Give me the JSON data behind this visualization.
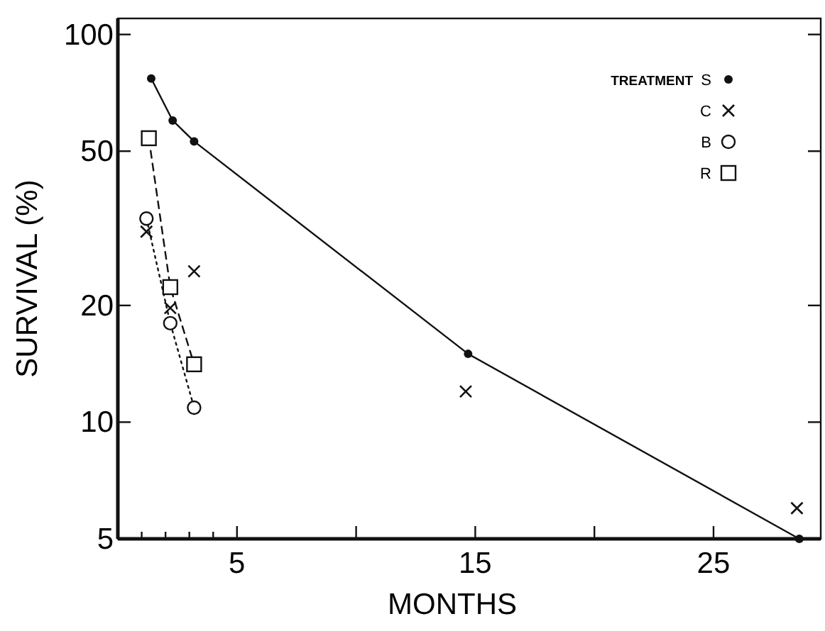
{
  "chart_data": {
    "type": "line",
    "xlabel": "MONTHS",
    "ylabel": "SURVIVAL (%)",
    "legend_title": "TREATMENT",
    "legend": "top right",
    "log": "y",
    "xlim": [
      0,
      29.5
    ],
    "ylim": [
      5,
      110
    ],
    "xticks": [
      {
        "value": 1,
        "label": null
      },
      {
        "value": 2,
        "label": null
      },
      {
        "value": 3,
        "label": null
      },
      {
        "value": 4,
        "label": null
      },
      5,
      {
        "value": 10,
        "label": null
      },
      15,
      {
        "value": 20,
        "label": null
      },
      25
    ],
    "yticks": [
      5,
      10,
      20,
      50,
      100
    ],
    "series": [
      {
        "name": "S",
        "color": "#111111",
        "marker": "circle",
        "line_style": "solid",
        "x": [
          1.4,
          2.3,
          3.2,
          14.7,
          28.6
        ],
        "values": [
          77,
          60,
          53,
          15,
          5
        ]
      },
      {
        "name": "C",
        "color": "#111111",
        "type": "scatter",
        "marker": "cross",
        "x": [
          1.2,
          2.2,
          3.2,
          14.6,
          28.5
        ],
        "values": [
          31,
          19.7,
          24.5,
          12,
          6
        ]
      },
      {
        "name": "B",
        "color": "#111111",
        "marker": "circle",
        "line_style": "dotted",
        "x": [
          1.2,
          2.2,
          3.2
        ],
        "values": [
          33.5,
          18,
          10.9
        ]
      },
      {
        "name": "R",
        "color": "#111111",
        "marker": "square",
        "line_style": "dashed",
        "x": [
          1.3,
          2.2,
          3.2
        ],
        "values": [
          54,
          22.3,
          14.1
        ]
      }
    ]
  }
}
